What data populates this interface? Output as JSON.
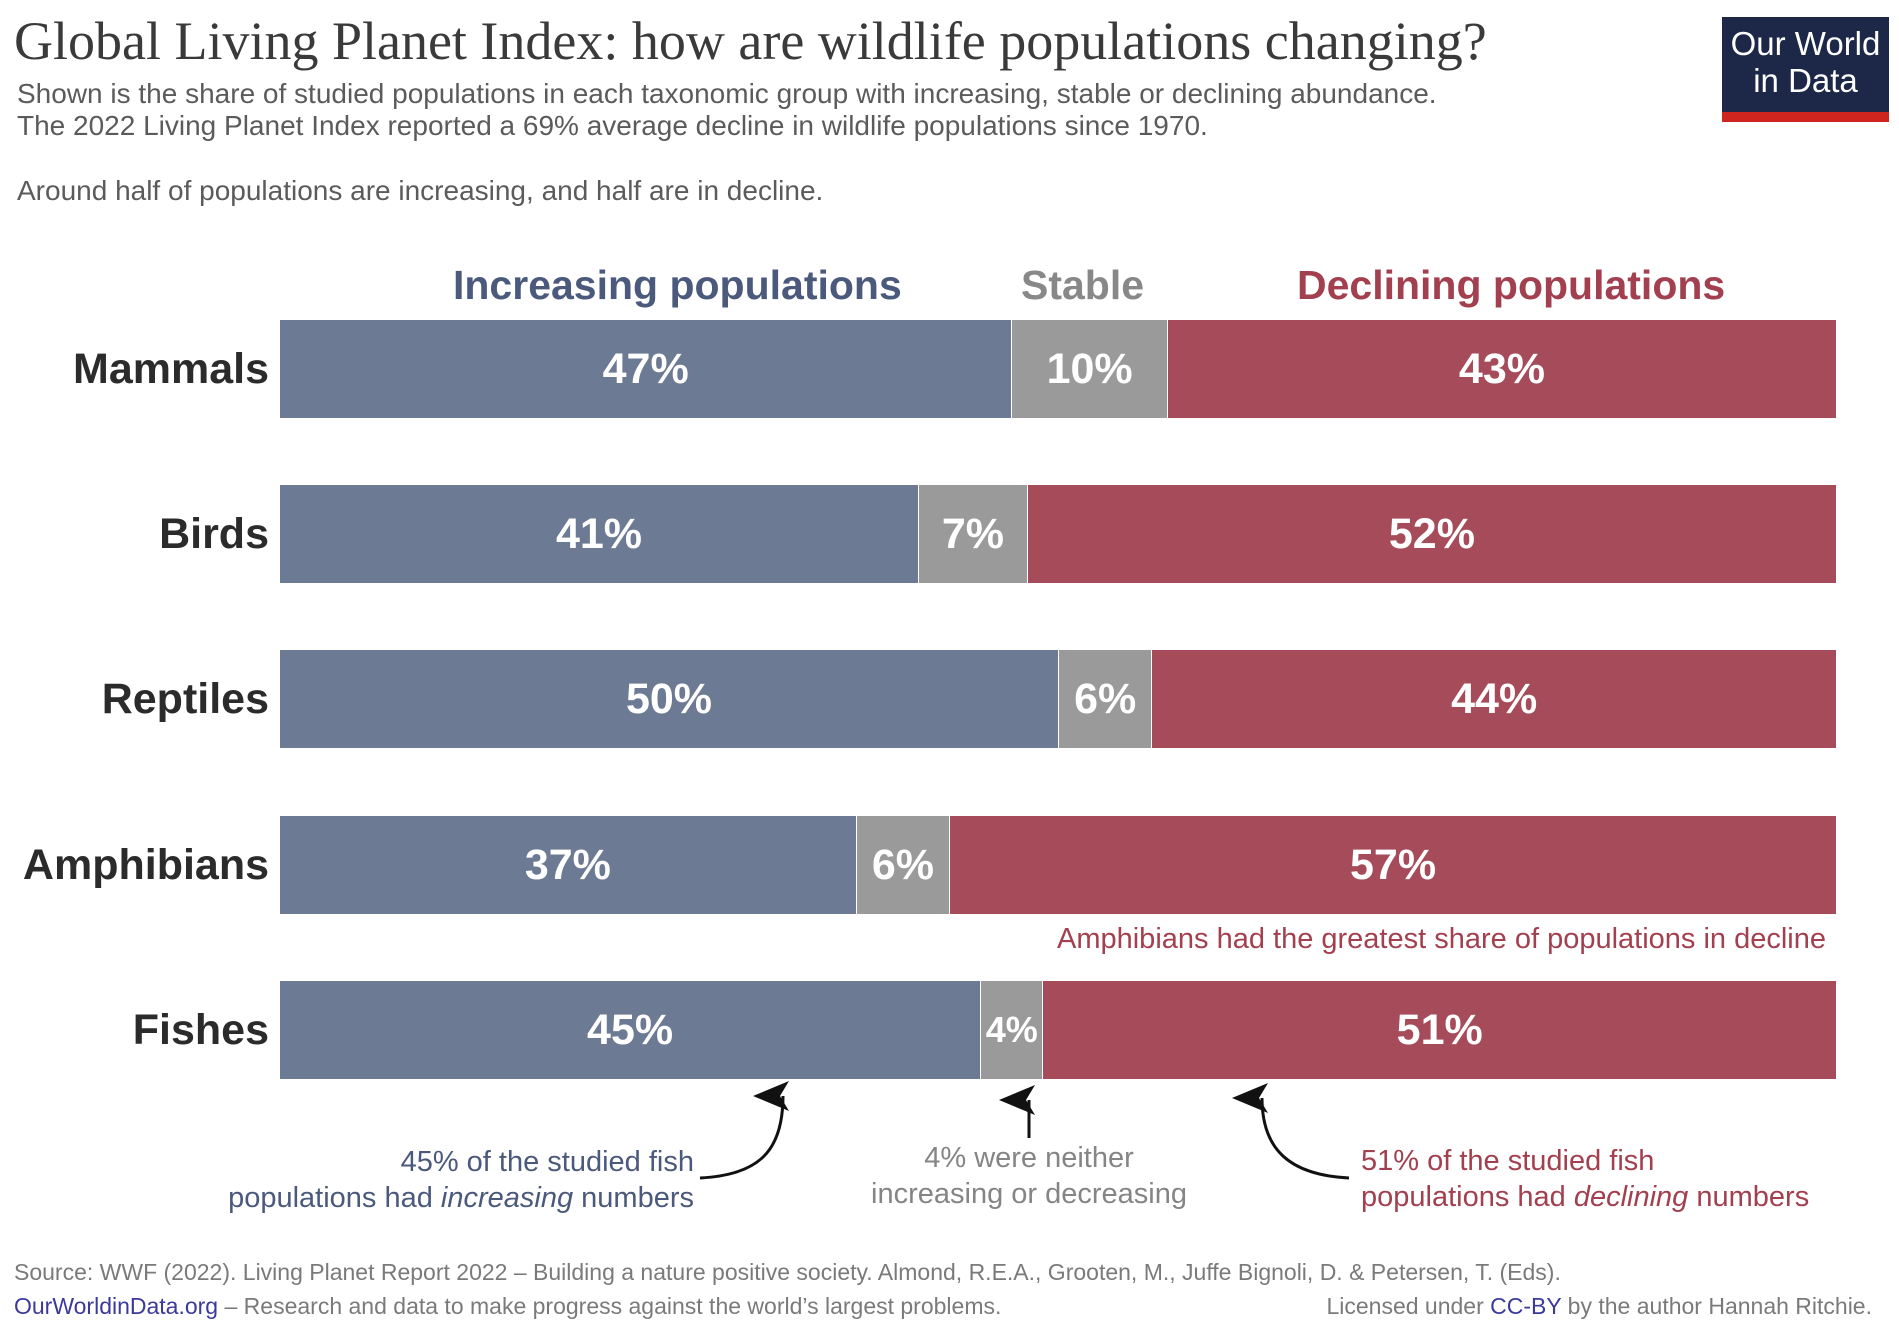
{
  "title": "Global Living Planet Index: how are wildlife populations changing?",
  "subtitle_lines": [
    "Shown is the share of studied populations in each taxonomic group with increasing, stable or declining abundance.",
    "The 2022 Living Planet Index reported a 69% average decline in wildlife populations since 1970."
  ],
  "lead": "Around half of populations are increasing, and half are in decline.",
  "logo": {
    "line1": "Our World",
    "line2": "in Data"
  },
  "colors": {
    "increasing": "#6d7a93",
    "stable": "#9a9a9a",
    "declining": "#a64b5a",
    "increasing_text": "#4b5a7c",
    "stable_text": "#888888",
    "declining_text": "#a3404f"
  },
  "chart_data": {
    "type": "bar",
    "orientation": "horizontal",
    "stacked": true,
    "unit": "%",
    "categories": [
      "Mammals",
      "Birds",
      "Reptiles",
      "Amphibians",
      "Fishes"
    ],
    "series": [
      {
        "name": "Increasing populations",
        "values": [
          47,
          41,
          50,
          37,
          45
        ]
      },
      {
        "name": "Stable",
        "values": [
          10,
          7,
          6,
          6,
          4
        ]
      },
      {
        "name": "Declining populations",
        "values": [
          43,
          52,
          44,
          57,
          51
        ]
      }
    ],
    "xlim": [
      0,
      100
    ],
    "grid": false,
    "legend": "top"
  },
  "annotations": {
    "amphibians": "Amphibians had the greatest share of populations in decline",
    "fish_increasing": {
      "line1": "45% of the studied fish",
      "line2_pre": "populations had ",
      "line2_em": "increasing",
      "line2_post": " numbers"
    },
    "fish_stable": {
      "line1": "4% were neither",
      "line2": "increasing or decreasing"
    },
    "fish_declining": {
      "line1": "51% of the studied fish",
      "line2_pre": "populations had ",
      "line2_em": "declining",
      "line2_post": " numbers"
    }
  },
  "footer": {
    "source": "Source: WWF (2022). Living Planet Report 2022 – Building a nature positive society. Almond, R.E.A., Grooten, M., Juffe Bignoli, D. & Petersen, T. (Eds).",
    "site": "OurWorldinData.org",
    "tagline": " – Research and data to make progress against the world’s largest problems.",
    "license_pre": "Licensed under ",
    "license_link": "CC-BY",
    "license_post": " by the author Hannah Ritchie."
  }
}
